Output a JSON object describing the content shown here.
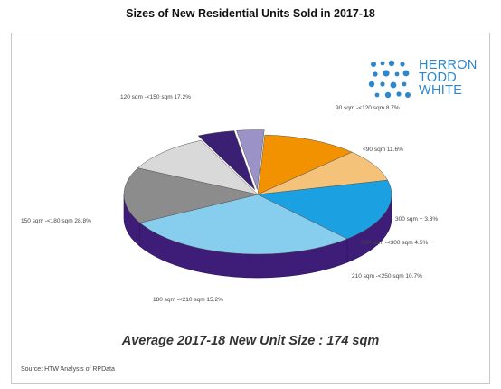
{
  "title": "Sizes of New Residential Units Sold in 2017-18",
  "logo": {
    "lines": [
      "HERRON",
      "TODD",
      "WHITE"
    ],
    "icon": "dot-grid-logo-icon"
  },
  "average_text": "Average 2017-18 New Unit Size : 174 sqm",
  "source": "Source: HTW Analysis of RPData",
  "chart_data": {
    "type": "pie",
    "title": "Sizes of New Residential Units Sold in 2017-18",
    "slices": [
      {
        "label": "<90 sqm",
        "value": 11.6,
        "pct": "11.6%",
        "color": "#f39200"
      },
      {
        "label": "90 sqm -<120 sqm",
        "value": 8.7,
        "pct": "8.7%",
        "color": "#f5c27a"
      },
      {
        "label": "120 sqm -<150 sqm",
        "value": 17.2,
        "pct": "17.2%",
        "color": "#1ba1e2"
      },
      {
        "label": "150 sqm -<180 sqm",
        "value": 28.8,
        "pct": "28.8%",
        "color": "#87cdee"
      },
      {
        "label": "180 sqm -<210 sqm",
        "value": 15.2,
        "pct": "15.2%",
        "color": "#8c8c8c"
      },
      {
        "label": "210 sqm -<250 sqm",
        "value": 10.7,
        "pct": "10.7%",
        "color": "#d9d9d9"
      },
      {
        "label": "250 sqm -<300 sqm",
        "value": 4.5,
        "pct": "4.5%",
        "color": "#3b1f73"
      },
      {
        "label": "300 sqm +",
        "value": 3.3,
        "pct": "3.3%",
        "color": "#9b93c7"
      }
    ],
    "side_color": "#3d1d78"
  }
}
